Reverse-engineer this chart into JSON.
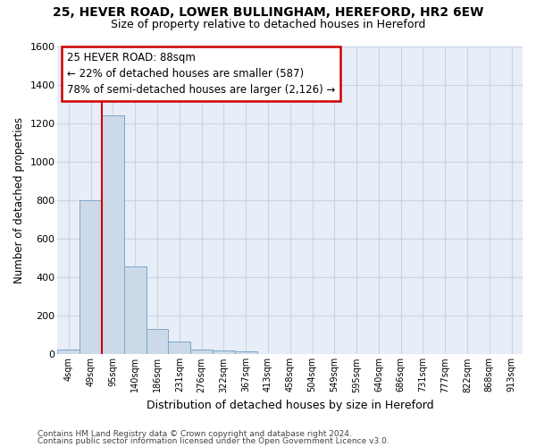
{
  "title_line1": "25, HEVER ROAD, LOWER BULLINGHAM, HEREFORD, HR2 6EW",
  "title_line2": "Size of property relative to detached houses in Hereford",
  "xlabel": "Distribution of detached houses by size in Hereford",
  "ylabel": "Number of detached properties",
  "bar_values": [
    25,
    800,
    1240,
    455,
    130,
    65,
    25,
    20,
    15,
    0,
    0,
    0,
    0,
    0,
    0,
    0,
    0,
    0,
    0,
    0,
    0
  ],
  "categories": [
    "4sqm",
    "49sqm",
    "95sqm",
    "140sqm",
    "186sqm",
    "231sqm",
    "276sqm",
    "322sqm",
    "367sqm",
    "413sqm",
    "458sqm",
    "504sqm",
    "549sqm",
    "595sqm",
    "640sqm",
    "686sqm",
    "731sqm",
    "777sqm",
    "822sqm",
    "868sqm",
    "913sqm"
  ],
  "bar_color": "#ccd9e8",
  "bar_edge_color": "#7ba7c7",
  "annotation_text": "25 HEVER ROAD: 88sqm\n← 22% of detached houses are smaller (587)\n78% of semi-detached houses are larger (2,126) →",
  "annotation_box_color": "#ffffff",
  "annotation_border_color": "#cc0000",
  "vline_color": "#cc0000",
  "vline_x_index": 2,
  "ylim": [
    0,
    1600
  ],
  "yticks": [
    0,
    200,
    400,
    600,
    800,
    1000,
    1200,
    1400,
    1600
  ],
  "grid_color": "#c8d4e4",
  "bg_color": "#ffffff",
  "plot_bg_color": "#e8eef8",
  "footer_line1": "Contains HM Land Registry data © Crown copyright and database right 2024.",
  "footer_line2": "Contains public sector information licensed under the Open Government Licence v3.0."
}
